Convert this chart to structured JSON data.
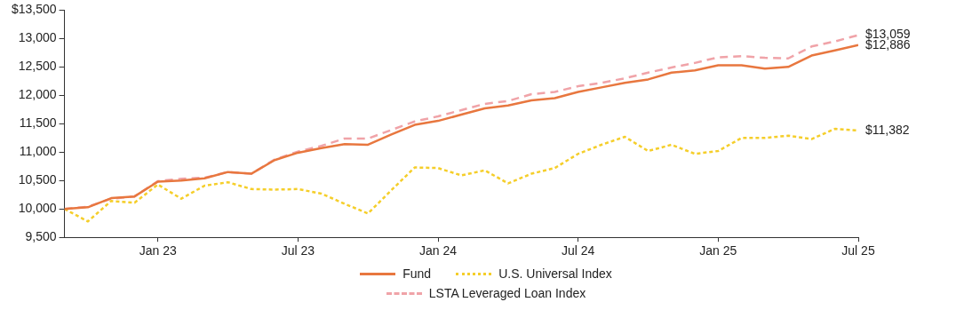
{
  "chart_data": {
    "type": "line",
    "x": [
      "2022-09",
      "2022-10",
      "2022-11",
      "2022-12",
      "2023-01",
      "2023-02",
      "2023-03",
      "2023-04",
      "2023-05",
      "2023-06",
      "2023-07",
      "2023-08",
      "2023-09",
      "2023-10",
      "2023-11",
      "2023-12",
      "2024-01",
      "2024-02",
      "2024-03",
      "2024-04",
      "2024-05",
      "2024-06",
      "2024-07",
      "2024-08",
      "2024-09",
      "2024-10",
      "2024-11",
      "2024-12",
      "2025-01",
      "2025-02",
      "2025-03",
      "2025-04",
      "2025-05",
      "2025-06",
      "2025-07"
    ],
    "series": [
      {
        "name": "Fund",
        "color": "#e8773f",
        "line_style": "solid",
        "values": [
          10000,
          10030,
          10190,
          10220,
          10480,
          10500,
          10540,
          10650,
          10620,
          10860,
          10990,
          11070,
          11140,
          11130,
          11310,
          11480,
          11550,
          11660,
          11770,
          11820,
          11910,
          11950,
          12060,
          12140,
          12220,
          12280,
          12400,
          12440,
          12530,
          12530,
          12470,
          12500,
          12700,
          12790,
          12886
        ]
      },
      {
        "name": "U.S. Universal Index",
        "color": "#f5ce2a",
        "line_style": "dotted",
        "values": [
          10000,
          9780,
          10140,
          10110,
          10430,
          10180,
          10410,
          10470,
          10350,
          10340,
          10350,
          10270,
          10090,
          9920,
          10330,
          10730,
          10720,
          10590,
          10680,
          10450,
          10620,
          10720,
          10970,
          11130,
          11270,
          11020,
          11130,
          10970,
          11020,
          11250,
          11250,
          11290,
          11230,
          11410,
          11382
        ]
      },
      {
        "name": "LSTA Leveraged Loan Index",
        "color": "#f0a3a8",
        "line_style": "dashed",
        "values": [
          10000,
          10040,
          10180,
          10220,
          10490,
          10530,
          10550,
          10650,
          10620,
          10870,
          11010,
          11110,
          11240,
          11240,
          11390,
          11540,
          11630,
          11740,
          11850,
          11900,
          12020,
          12060,
          12160,
          12220,
          12300,
          12400,
          12490,
          12570,
          12670,
          12690,
          12660,
          12650,
          12860,
          12950,
          13059
        ]
      }
    ],
    "xlim": [
      "2022-09",
      "2025-07"
    ],
    "xticks": [
      {
        "value": "2023-01",
        "label": "Jan 23"
      },
      {
        "value": "2023-07",
        "label": "Jul 23"
      },
      {
        "value": "2024-01",
        "label": "Jan 24"
      },
      {
        "value": "2024-07",
        "label": "Jul 24"
      },
      {
        "value": "2025-01",
        "label": "Jan 25"
      },
      {
        "value": "2025-07",
        "label": "Jul 25"
      }
    ],
    "ylim": [
      9500,
      13500
    ],
    "yticks": [
      {
        "value": 9500,
        "label": "9,500"
      },
      {
        "value": 10000,
        "label": "10,000"
      },
      {
        "value": 10500,
        "label": "10,500"
      },
      {
        "value": 11000,
        "label": "11,000"
      },
      {
        "value": 11500,
        "label": "11,500"
      },
      {
        "value": 12000,
        "label": "12,000"
      },
      {
        "value": 12500,
        "label": "12,500"
      },
      {
        "value": 13000,
        "label": "13,000"
      },
      {
        "value": 13500,
        "label": "$13,500"
      }
    ],
    "annotations": [
      {
        "text": "$13,059",
        "x": "2025-07",
        "y": 13059
      },
      {
        "text": "$12,886",
        "x": "2025-07",
        "y": 12886
      },
      {
        "text": "$11,382",
        "x": "2025-07",
        "y": 11382
      }
    ],
    "grid": false,
    "legend": "bottom",
    "marker": "none"
  }
}
